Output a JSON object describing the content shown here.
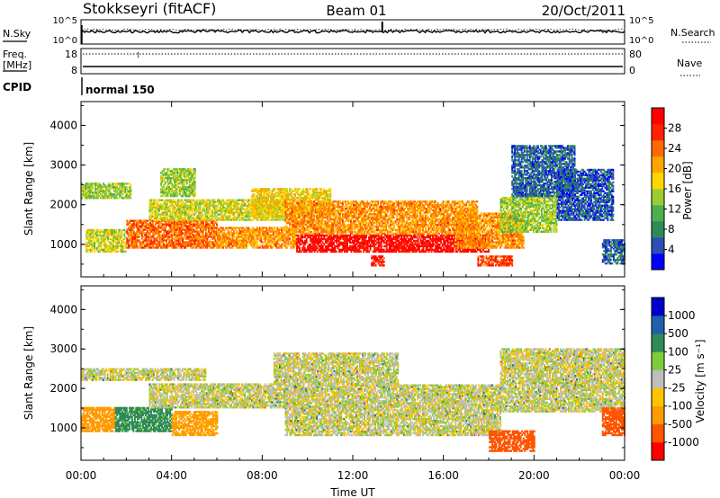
{
  "header": {
    "station": "Stokkseyri (fitACF)",
    "beam": "Beam 01",
    "date": "20/Oct/2011"
  },
  "strip_top": {
    "left_label": "N.Sky",
    "right_label": "N.Search",
    "left_ticks": [
      "10^5",
      "10^0"
    ],
    "right_ticks": [
      "10^5",
      "10^0"
    ]
  },
  "strip_freq": {
    "left_label_1": "Freq.",
    "left_label_2": "[MHz]",
    "right_label": "Nave",
    "left_ticks": [
      "18",
      "8"
    ],
    "right_ticks": [
      "80",
      "0"
    ]
  },
  "cpid": {
    "label": "CPID",
    "value": "normal 150"
  },
  "colors": {
    "power": [
      "#0000ff",
      "#2c4fb5",
      "#2e8b57",
      "#4caf50",
      "#9acd32",
      "#ffd700",
      "#ffa500",
      "#ff6a00",
      "#ff2200",
      "#ff0000"
    ],
    "velocity": [
      "#ff0000",
      "#ff5500",
      "#ff9a00",
      "#ffc400",
      "#bebebe",
      "#7fcc3a",
      "#2e8b57",
      "#1f5fb0",
      "#0000cc"
    ]
  },
  "chart_data": [
    {
      "type": "heatmap",
      "name": "power",
      "ylabel": "Slant Range [km]",
      "ylim": [
        180,
        4600
      ],
      "y_ticks": [
        "4000",
        "3000",
        "2000",
        "1000"
      ],
      "colorbar_label": "Power [dB]",
      "colorbar_ticks": [
        "28",
        "24",
        "20",
        "16",
        "12",
        "8",
        "4"
      ],
      "clim": [
        0,
        32
      ],
      "bands": [
        {
          "t0": 0.0,
          "t1": 2.2,
          "r0": 2150,
          "r1": 2550,
          "v": 14
        },
        {
          "t0": 0.2,
          "t1": 2.0,
          "r0": 800,
          "r1": 1350,
          "v": 16
        },
        {
          "t0": 2.0,
          "t1": 6.0,
          "r0": 900,
          "r1": 1600,
          "v": 24
        },
        {
          "t0": 6.0,
          "t1": 9.5,
          "r0": 900,
          "r1": 1400,
          "v": 22
        },
        {
          "t0": 3.0,
          "t1": 9.0,
          "r0": 1600,
          "r1": 2100,
          "v": 16
        },
        {
          "t0": 3.5,
          "t1": 5.0,
          "r0": 2200,
          "r1": 2900,
          "v": 14
        },
        {
          "t0": 7.5,
          "t1": 11.0,
          "r0": 1700,
          "r1": 2400,
          "v": 18
        },
        {
          "t0": 9.5,
          "t1": 18.0,
          "r0": 800,
          "r1": 1250,
          "v": 30
        },
        {
          "t0": 9.0,
          "t1": 17.5,
          "r0": 1250,
          "r1": 2100,
          "v": 22
        },
        {
          "t0": 12.8,
          "t1": 13.4,
          "r0": 450,
          "r1": 700,
          "v": 28
        },
        {
          "t0": 16.5,
          "t1": 19.5,
          "r0": 900,
          "r1": 1800,
          "v": 22
        },
        {
          "t0": 17.5,
          "t1": 19.0,
          "r0": 450,
          "r1": 700,
          "v": 26
        },
        {
          "t0": 18.5,
          "t1": 21.0,
          "r0": 1300,
          "r1": 2200,
          "v": 14
        },
        {
          "t0": 19.0,
          "t1": 21.8,
          "r0": 2200,
          "r1": 3500,
          "v": 6
        },
        {
          "t0": 21.0,
          "t1": 23.5,
          "r0": 1600,
          "r1": 2900,
          "v": 5
        },
        {
          "t0": 23.0,
          "t1": 24.0,
          "r0": 500,
          "r1": 1100,
          "v": 6
        }
      ]
    },
    {
      "type": "heatmap",
      "name": "velocity",
      "ylabel": "Slant Range [km]",
      "xlabel": "Time UT",
      "ylim": [
        180,
        4600
      ],
      "y_ticks": [
        "4000",
        "3000",
        "2000",
        "1000"
      ],
      "x_ticks": [
        "00:00",
        "04:00",
        "08:00",
        "12:00",
        "16:00",
        "20:00",
        "00:00"
      ],
      "xlim": [
        0,
        24
      ],
      "colorbar_label": "Velocity [m s⁻¹]",
      "colorbar_ticks": [
        "1000",
        "500",
        "100",
        "25",
        "-25",
        "-100",
        "-500",
        "-1000"
      ],
      "bands": [
        {
          "t0": 0.0,
          "t1": 5.5,
          "r0": 2200,
          "r1": 2500,
          "v": 0
        },
        {
          "t0": 0.0,
          "t1": 1.5,
          "r0": 900,
          "r1": 1500,
          "v": -300
        },
        {
          "t0": 1.5,
          "t1": 4.0,
          "r0": 900,
          "r1": 1500,
          "v": 150
        },
        {
          "t0": 4.0,
          "t1": 6.0,
          "r0": 800,
          "r1": 1400,
          "v": -150
        },
        {
          "t0": 3.0,
          "t1": 9.0,
          "r0": 1500,
          "r1": 2100,
          "v": 0
        },
        {
          "t0": 9.0,
          "t1": 18.5,
          "r0": 800,
          "r1": 2100,
          "v": 0
        },
        {
          "t0": 8.5,
          "t1": 14.0,
          "r0": 2100,
          "r1": 2900,
          "v": 0
        },
        {
          "t0": 18.5,
          "t1": 24.0,
          "r0": 1400,
          "r1": 3000,
          "v": 0
        },
        {
          "t0": 18.0,
          "t1": 20.0,
          "r0": 400,
          "r1": 900,
          "v": -600
        },
        {
          "t0": 23.0,
          "t1": 24.0,
          "r0": 800,
          "r1": 1500,
          "v": -700
        }
      ]
    }
  ]
}
